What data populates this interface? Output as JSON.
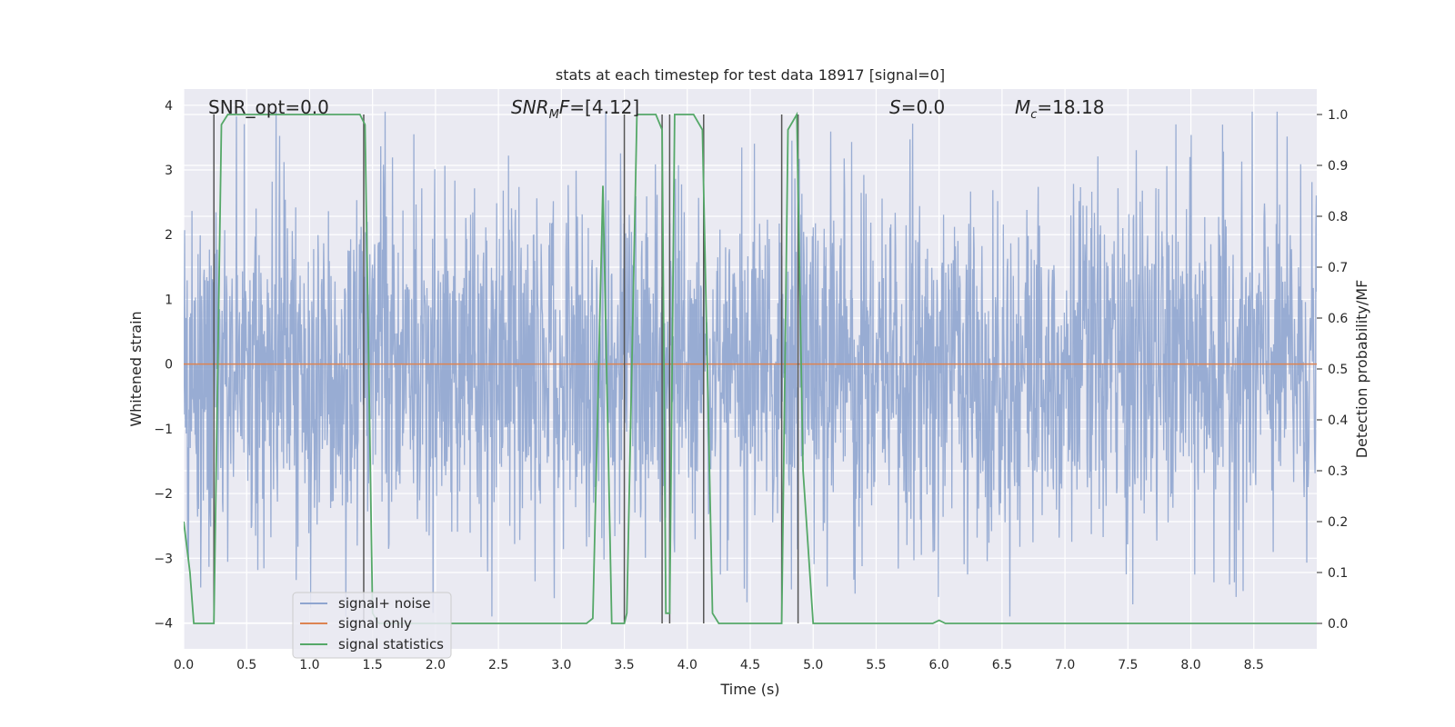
{
  "chart_data": {
    "type": "line",
    "title": "stats at each timestep for test data 18917 [signal=0]",
    "xlabel": "Time (s)",
    "ylabel": "Whitened strain",
    "y2label": "Detection probability/MF",
    "xlim": [
      0,
      9.0
    ],
    "ylim": [
      -4.4,
      4.25
    ],
    "y2lim": [
      -0.05,
      1.05
    ],
    "x_ticks": [
      "0.0",
      "0.5",
      "1.0",
      "1.5",
      "2.0",
      "2.5",
      "3.0",
      "3.5",
      "4.0",
      "4.5",
      "5.0",
      "5.5",
      "6.0",
      "6.5",
      "7.0",
      "7.5",
      "8.0",
      "8.5"
    ],
    "y_ticks": [
      "4",
      "3",
      "2",
      "1",
      "0",
      "−1",
      "−2",
      "−3",
      "−4"
    ],
    "y2_ticks": [
      "1.0",
      "0.9",
      "0.8",
      "0.7",
      "0.6",
      "0.5",
      "0.4",
      "0.3",
      "0.2",
      "0.1",
      "0.0"
    ],
    "grid": true,
    "legend_position": "lower-left",
    "annotations": {
      "snr_opt": "SNR_opt=0.0",
      "snr_mf": "=[4.12]",
      "s_stat": "=0.0",
      "mc": "=18.18"
    },
    "series": [
      {
        "name": "signal+ noise",
        "color": "#8fa5cf",
        "axis": "left",
        "description_level": "noise band roughly within ±2.3 with spikes to about ±4",
        "envelope": {
          "typical_amplitude": 2.2,
          "peak_amplitude": 3.9
        }
      },
      {
        "name": "signal only",
        "color": "#dd8452",
        "axis": "left",
        "x": [
          0,
          9.0
        ],
        "y": [
          0,
          0
        ]
      },
      {
        "name": "signal statistics",
        "color": "#55a868",
        "axis": "right",
        "x": [
          0.0,
          0.05,
          0.08,
          0.2,
          0.24,
          0.3,
          0.35,
          1.4,
          1.44,
          1.5,
          1.55,
          3.2,
          3.25,
          3.33,
          3.4,
          3.5,
          3.52,
          3.6,
          3.75,
          3.8,
          3.83,
          3.86,
          3.9,
          4.05,
          4.12,
          4.2,
          4.25,
          4.75,
          4.8,
          4.87,
          4.92,
          5.0,
          5.95,
          6.0,
          6.05,
          8.5,
          9.0
        ],
        "y": [
          0.2,
          0.1,
          0.0,
          0.0,
          0.0,
          0.98,
          1.0,
          1.0,
          0.98,
          0.02,
          0.0,
          0.0,
          0.01,
          0.86,
          0.0,
          0.0,
          0.02,
          1.0,
          1.0,
          0.97,
          0.02,
          0.02,
          1.0,
          1.0,
          0.97,
          0.02,
          0.0,
          0.0,
          0.97,
          1.0,
          0.3,
          0.0,
          0.0,
          0.006,
          0.0,
          0.0,
          0.0
        ]
      }
    ],
    "vertical_markers": {
      "color": "#555555",
      "x": [
        0.24,
        1.43,
        3.5,
        3.8,
        3.86,
        4.13,
        4.75,
        4.88
      ]
    }
  }
}
